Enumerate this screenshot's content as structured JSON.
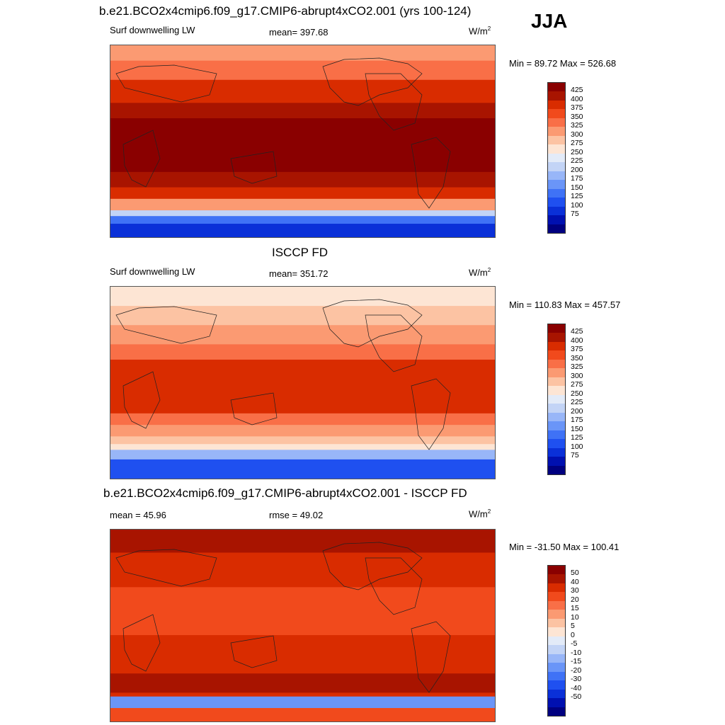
{
  "season": "JJA",
  "panels": [
    {
      "title": "b.e21.BCO2x4cmip6.f09_g17.CMIP6-abrupt4xCO2.001 (yrs 100-124)",
      "left_label": "Surf downwelling LW",
      "center_label": "mean= 397.68",
      "units": "W/m",
      "units_sup": "2",
      "minmax": "Min =  89.72 Max = 526.68",
      "kind": "abs",
      "colorbar_ticks": [
        "425",
        "400",
        "375",
        "350",
        "325",
        "300",
        "275",
        "250",
        "225",
        "200",
        "175",
        "150",
        "125",
        "100",
        "75"
      ]
    },
    {
      "title": "ISCCP FD",
      "left_label": "Surf downwelling LW",
      "center_label": "mean= 351.72",
      "units": "W/m",
      "units_sup": "2",
      "minmax": "Min = 110.83 Max = 457.57",
      "kind": "abs",
      "colorbar_ticks": [
        "425",
        "400",
        "375",
        "350",
        "325",
        "300",
        "275",
        "250",
        "225",
        "200",
        "175",
        "150",
        "125",
        "100",
        "75"
      ]
    },
    {
      "title": "b.e21.BCO2x4cmip6.f09_g17.CMIP6-abrupt4xCO2.001 - ISCCP FD",
      "left_label": "mean =  45.96",
      "center_label": "rmse =  49.02",
      "units": "W/m",
      "units_sup": "2",
      "minmax": "Min = -31.50 Max = 100.41",
      "kind": "diff",
      "colorbar_ticks": [
        "50",
        "40",
        "30",
        "20",
        "15",
        "10",
        "5",
        "0",
        "-5",
        "-10",
        "-15",
        "-20",
        "-30",
        "-40",
        "-50"
      ]
    }
  ],
  "colors": {
    "palette": [
      "#000080",
      "#0010b0",
      "#0a30d8",
      "#1f50f0",
      "#3f72f6",
      "#6a95f8",
      "#98b6f8",
      "#c3d4f6",
      "#e3ebf8",
      "#fde5d4",
      "#fcc3a3",
      "#fb9a72",
      "#f96f47",
      "#f14a1c",
      "#d92c00",
      "#a81400",
      "#8a0000"
    ]
  }
}
